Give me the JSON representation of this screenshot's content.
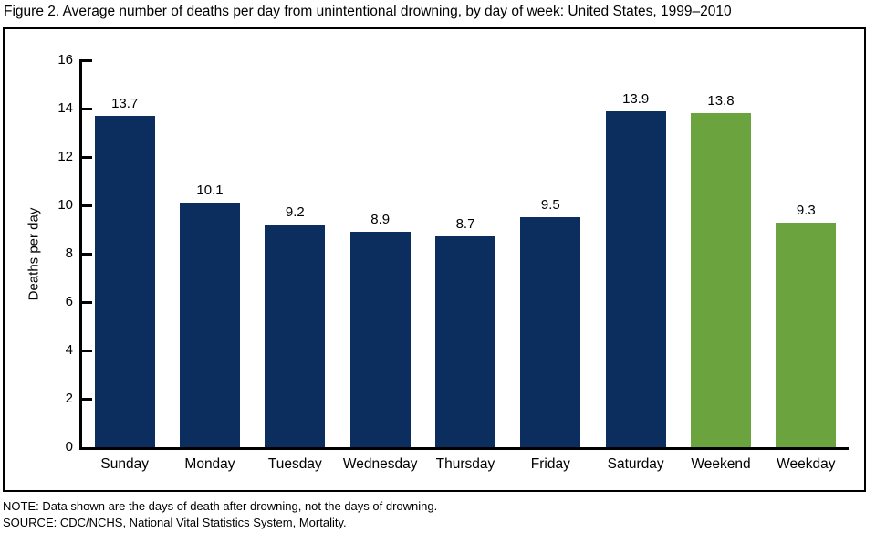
{
  "title": "Figure 2. Average number of deaths per day from unintentional drowning, by day of week: United States, 1999–2010",
  "note": "NOTE: Data shown are the days of death after drowning, not the days of drowning.",
  "source": "SOURCE: CDC/NCHS, National Vital Statistics System, Mortality.",
  "colors": {
    "day_bar": "#0b2e5e",
    "aggregate_bar": "#6ba43e",
    "axis": "#000000",
    "border": "#000000",
    "background": "#ffffff",
    "text": "#000000"
  },
  "chart_data": {
    "type": "bar",
    "title": "Figure 2. Average number of deaths per day from unintentional drowning, by day of week: United States, 1999–2010",
    "categories": [
      "Sunday",
      "Monday",
      "Tuesday",
      "Wednesday",
      "Thursday",
      "Friday",
      "Saturday",
      "Weekend",
      "Weekday"
    ],
    "values": [
      13.7,
      10.1,
      9.2,
      8.9,
      8.7,
      9.5,
      13.9,
      13.8,
      9.3
    ],
    "value_labels": [
      "13.7",
      "10.1",
      "9.2",
      "8.9",
      "8.7",
      "9.5",
      "13.9",
      "13.8",
      "9.3"
    ],
    "bar_color_keys": [
      "day_bar",
      "day_bar",
      "day_bar",
      "day_bar",
      "day_bar",
      "day_bar",
      "day_bar",
      "aggregate_bar",
      "aggregate_bar"
    ],
    "xlabel": "",
    "ylabel": "Deaths per day",
    "ylim": [
      0,
      16
    ],
    "yticks": [
      0,
      2,
      4,
      6,
      8,
      10,
      12,
      14,
      16
    ],
    "grid": false,
    "legend": null,
    "data_labels_shown": true
  }
}
